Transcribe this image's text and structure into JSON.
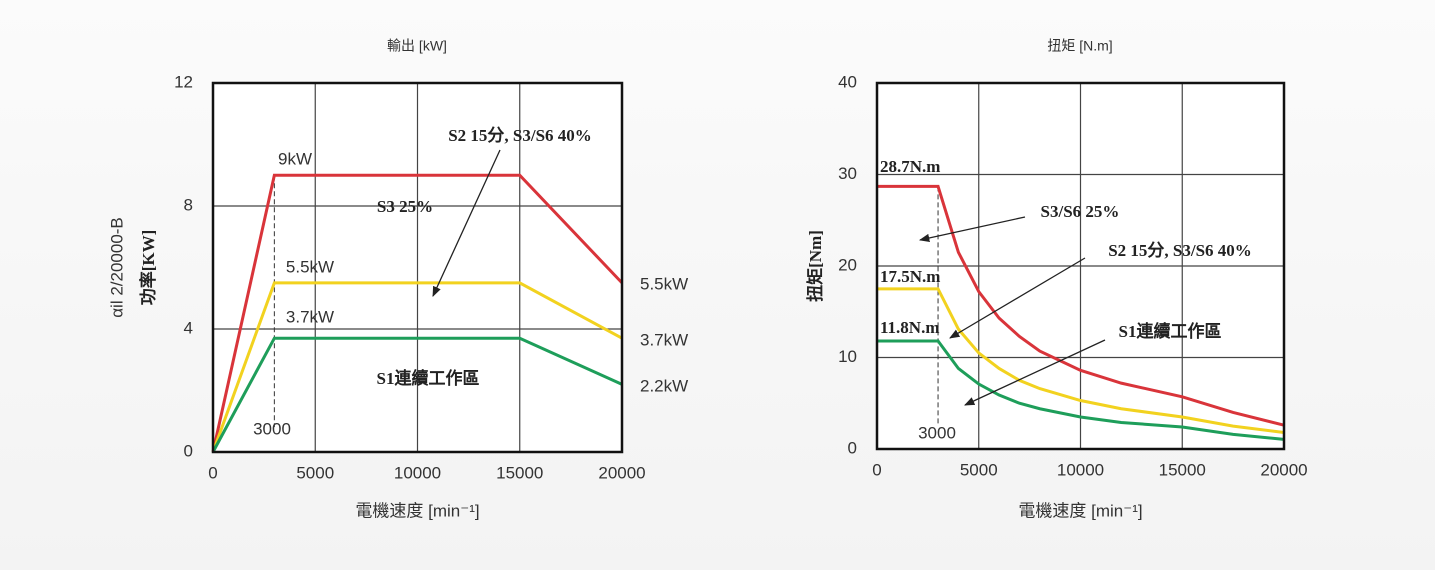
{
  "chart_data": [
    {
      "type": "line",
      "title": "輸出 [kW]",
      "ylabel": [
        "αil 2/20000-B",
        "功率[KW]"
      ],
      "xlabel": "電機速度 [min⁻¹]",
      "xlim": [
        0,
        20000
      ],
      "xticks": [
        0,
        5000,
        10000,
        15000,
        20000
      ],
      "ylim": [
        0,
        12
      ],
      "yticks": [
        0,
        4,
        8,
        12
      ],
      "grid": true,
      "x": [
        0,
        3000,
        15000,
        20000
      ],
      "series": [
        {
          "name": "S3 25%",
          "color": "#d9343a",
          "values": [
            0,
            9,
            9,
            5.5
          ]
        },
        {
          "name": "S2 15分, S3/S6 40%",
          "color": "#f2d21f",
          "values": [
            0,
            5.5,
            5.5,
            3.7
          ]
        },
        {
          "name": "S1連續工作區",
          "color": "#1e9e5a",
          "values": [
            0,
            3.7,
            3.7,
            2.2
          ]
        }
      ],
      "annotations": [
        "9kW",
        "5.5kW",
        "3.7kW",
        "5.5kW",
        "3.7kW",
        "2.2kW",
        "3000"
      ]
    },
    {
      "type": "line",
      "title": "扭矩 [N.m]",
      "ylabel": [
        "扭矩[Nm]"
      ],
      "xlabel": "電機速度 [min⁻¹]",
      "xlim": [
        0,
        20000
      ],
      "xticks": [
        0,
        5000,
        10000,
        15000,
        20000
      ],
      "ylim": [
        0,
        40
      ],
      "yticks": [
        0,
        10,
        20,
        30,
        40
      ],
      "grid": true,
      "x": [
        0,
        3000,
        4000,
        5000,
        6000,
        7000,
        8000,
        10000,
        12000,
        15000,
        17500,
        20000
      ],
      "series": [
        {
          "name": "S3/S6 25%",
          "color": "#d9343a",
          "values": [
            28.7,
            28.7,
            21.5,
            17.2,
            14.3,
            12.3,
            10.7,
            8.6,
            7.2,
            5.7,
            4.0,
            2.6
          ]
        },
        {
          "name": "S2 15分, S3/S6 40%",
          "color": "#f2d21f",
          "values": [
            17.5,
            17.5,
            13.1,
            10.5,
            8.8,
            7.5,
            6.6,
            5.3,
            4.4,
            3.5,
            2.5,
            1.8
          ]
        },
        {
          "name": "S1連續工作區",
          "color": "#1e9e5a",
          "values": [
            11.8,
            11.8,
            8.8,
            7.1,
            5.9,
            5.0,
            4.4,
            3.5,
            2.9,
            2.4,
            1.6,
            1.05
          ]
        }
      ],
      "annotations": [
        "28.7N.m",
        "17.5N.m",
        "11.8N.m",
        "3000"
      ]
    }
  ]
}
